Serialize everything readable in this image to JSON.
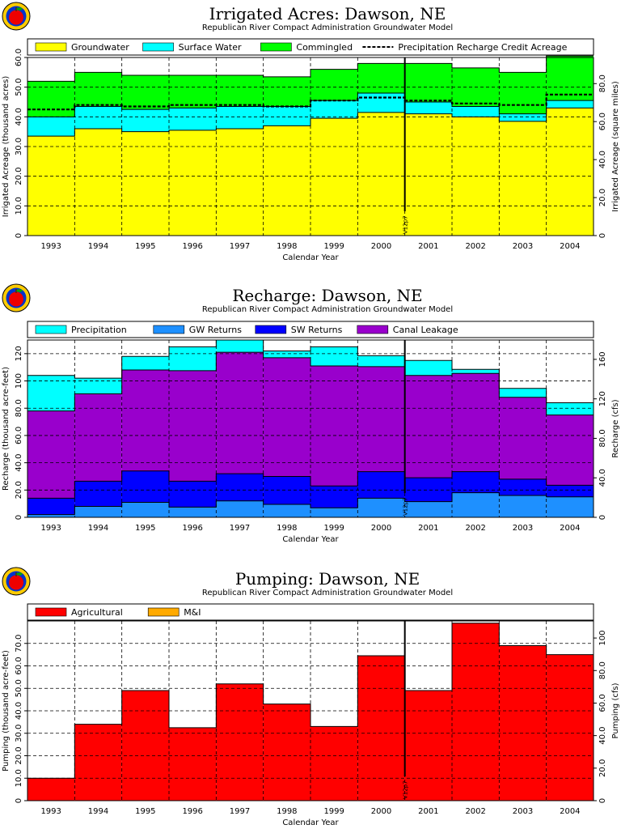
{
  "chart_data": [
    {
      "type": "area",
      "title": "Irrigated Acres: Dawson, NE",
      "subtitle": "Republican River Compact Administration Groundwater Model",
      "xlabel": "Calendar Year",
      "ylabel": "Irrigated Acreage (thousand acres)",
      "y2label": "Irrigated Acreage (square miles)",
      "categories": [
        "1993",
        "1994",
        "1995",
        "1996",
        "1997",
        "1998",
        "1999",
        "2000",
        "2001",
        "2002",
        "2003",
        "2004"
      ],
      "ylim": [
        0,
        60
      ],
      "yticks": [
        "0",
        "10.0",
        "20.0",
        "30.0",
        "40.0",
        "50.0",
        "60.0"
      ],
      "y2lim": [
        0,
        93.75
      ],
      "y2ticks": [
        "0",
        "20.0",
        "40.0",
        "60.0",
        "80.0"
      ],
      "stacked": true,
      "grid": true,
      "legend_position": "top",
      "series": [
        {
          "name": "Groundwater",
          "color": "#ffff00",
          "values": [
            33.5,
            36,
            35,
            35.5,
            36,
            37,
            39.5,
            41.5,
            41,
            40,
            38.5,
            43
          ]
        },
        {
          "name": "Surface Water",
          "color": "#00ffff",
          "values": [
            6.5,
            7.5,
            7.5,
            7.5,
            7.5,
            6.5,
            6,
            6.5,
            4,
            3.5,
            2.5,
            2.5
          ]
        },
        {
          "name": "Commingled",
          "color": "#00ff00",
          "values": [
            12,
            11.5,
            11.5,
            11,
            10.5,
            10,
            10.5,
            10,
            13,
            13,
            14,
            15
          ]
        }
      ],
      "lines": [
        {
          "name": "Precipitation Recharge Credit Acreage",
          "style": "dashed",
          "color": "#000000",
          "values": [
            42.5,
            44,
            43.5,
            44,
            44,
            43.5,
            45.5,
            46.5,
            45.5,
            44.5,
            44,
            47.5
          ]
        }
      ],
      "vline": {
        "label": "V12p7",
        "after_index": 7
      }
    },
    {
      "type": "area",
      "title": "Recharge: Dawson, NE",
      "subtitle": "Republican River Compact Administration Groundwater Model",
      "xlabel": "Calendar Year",
      "ylabel": "Recharge (thousand acre-feet)",
      "y2label": "Recharge (cfs)",
      "categories": [
        "1993",
        "1994",
        "1995",
        "1996",
        "1997",
        "1998",
        "1999",
        "2000",
        "2001",
        "2002",
        "2003",
        "2004"
      ],
      "ylim": [
        0,
        130
      ],
      "yticks": [
        "0",
        "20.0",
        "40.0",
        "60.0",
        "80.0",
        "100",
        "120"
      ],
      "y2lim": [
        0,
        179.6
      ],
      "y2ticks": [
        "0",
        "40.0",
        "80.0",
        "120",
        "160"
      ],
      "stacked": true,
      "grid": true,
      "legend_position": "top",
      "series": [
        {
          "name": "GW Returns",
          "color": "#1e90ff",
          "values": [
            2,
            8,
            11,
            7.5,
            12,
            9.5,
            7,
            14,
            11.5,
            18,
            16,
            15
          ]
        },
        {
          "name": "SW Returns",
          "color": "#0000ff",
          "values": [
            12,
            18.5,
            23,
            19,
            20,
            20.5,
            16,
            19.5,
            17.5,
            15.5,
            12,
            8.5
          ]
        },
        {
          "name": "Canal Leakage",
          "color": "#9900cc",
          "values": [
            64,
            64,
            74,
            81,
            89,
            87,
            88,
            77,
            75,
            72,
            60,
            51.5
          ]
        },
        {
          "name": "Precipitation",
          "color": "#00ffff",
          "values": [
            26,
            11.5,
            10,
            17.5,
            9,
            5,
            14,
            8,
            11,
            3,
            6.5,
            9
          ]
        }
      ],
      "vline": {
        "label": "V12p7",
        "after_index": 7
      }
    },
    {
      "type": "bar",
      "title": "Pumping: Dawson, NE",
      "subtitle": "Republican River Compact Administration Groundwater Model",
      "xlabel": "Calendar Year",
      "ylabel": "Pumping (thousand acre-feet)",
      "y2label": "Pumping (cfs)",
      "categories": [
        "1993",
        "1994",
        "1995",
        "1996",
        "1997",
        "1998",
        "1999",
        "2000",
        "2001",
        "2002",
        "2003",
        "2004"
      ],
      "ylim": [
        0,
        80
      ],
      "yticks": [
        "0",
        "10.0",
        "20.0",
        "30.0",
        "40.0",
        "50.0",
        "60.0",
        "70.0"
      ],
      "y2lim": [
        0,
        110.5
      ],
      "y2ticks": [
        "0",
        "20.0",
        "40.0",
        "60.0",
        "80.0",
        "100"
      ],
      "stacked": true,
      "grid": true,
      "legend_position": "top",
      "series": [
        {
          "name": "Agricultural",
          "color": "#ff0000",
          "values": [
            10,
            34,
            49,
            32.5,
            52,
            43,
            33,
            64.5,
            49,
            79,
            69,
            65
          ]
        },
        {
          "name": "M&I",
          "color": "#ffaa00",
          "values": [
            0,
            0,
            0,
            0,
            0,
            0,
            0,
            0,
            0,
            0,
            0,
            0
          ]
        }
      ],
      "vline": {
        "label": "V12p7",
        "after_index": 7
      }
    }
  ]
}
